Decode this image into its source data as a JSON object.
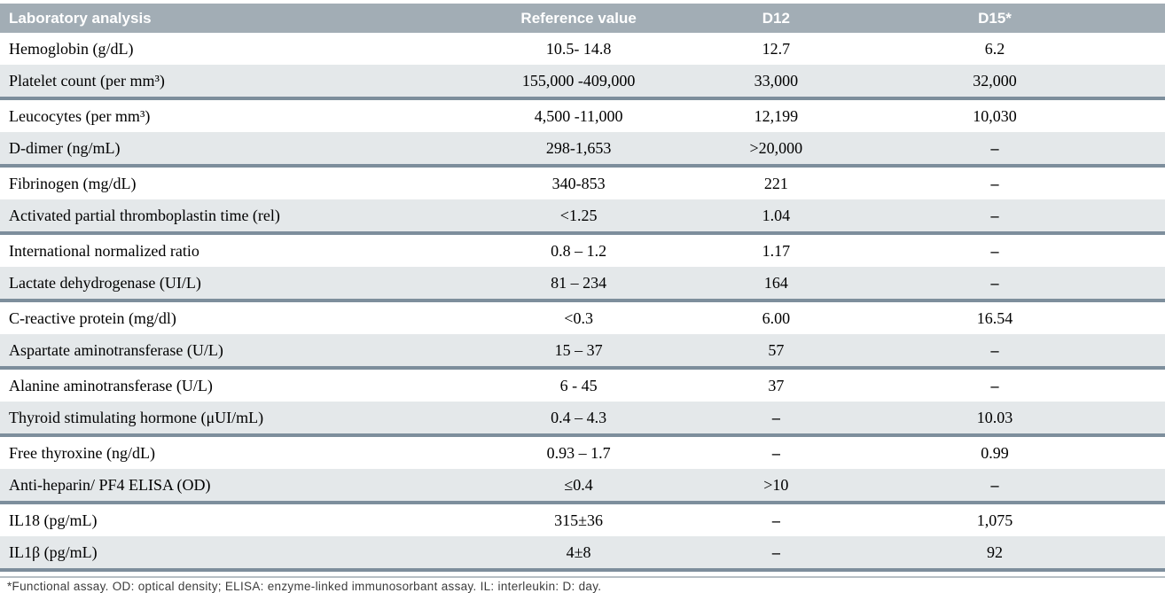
{
  "table": {
    "columns": [
      "Laboratory analysis",
      "Reference value",
      "D12",
      "D15*"
    ],
    "rows": [
      [
        "Hemoglobin (g/dL)",
        "10.5- 14.8",
        "12.7",
        "6.2"
      ],
      [
        "Platelet count (per mm³)",
        "155,000 -409,000",
        "33,000",
        "32,000"
      ],
      [
        "Leucocytes (per mm³)",
        "4,500 -11,000",
        "12,199",
        "10,030"
      ],
      [
        "D-dimer (ng/mL)",
        "298-1,653",
        ">20,000",
        "–"
      ],
      [
        "Fibrinogen (mg/dL)",
        "340-853",
        "221",
        "–"
      ],
      [
        "Activated partial thromboplastin time (rel)",
        "<1.25",
        "1.04",
        "–"
      ],
      [
        "International normalized ratio",
        "0.8 – 1.2",
        "1.17",
        "–"
      ],
      [
        "Lactate dehydrogenase (UI/L)",
        "81 – 234",
        "164",
        "–"
      ],
      [
        "C-reactive protein (mg/dl)",
        "<0.3",
        "6.00",
        "16.54"
      ],
      [
        "Aspartate aminotransferase (U/L)",
        "15 – 37",
        "57",
        "–"
      ],
      [
        "Alanine aminotransferase (U/L)",
        "6 - 45",
        "37",
        "–"
      ],
      [
        "Thyroid stimulating hormone (μUI/mL)",
        "0.4 – 4.3",
        "–",
        "10.03"
      ],
      [
        "Free thyroxine (ng/dL)",
        "0.93 – 1.7",
        "–",
        "0.99"
      ],
      [
        "Anti-heparin/ PF4 ELISA (OD)",
        "≤0.4",
        ">10",
        "–"
      ],
      [
        "IL18 (pg/mL)",
        "315±36",
        "–",
        "1,075"
      ],
      [
        "IL1β (pg/mL)",
        "4±8",
        "–",
        "92"
      ]
    ]
  },
  "missing_value_symbol": "–",
  "footnote": "*Functional assay. OD: optical density; ELISA: enzyme-linked immunosorbant assay. IL: interleukin: D: day.",
  "colors": {
    "header_bg": "#a2adb5",
    "header_text": "#ffffff",
    "shaded_row_bg": "#e4e8ea",
    "thick_divider": "#7d8e9c",
    "bottom_rule": "#b7bfc5"
  }
}
